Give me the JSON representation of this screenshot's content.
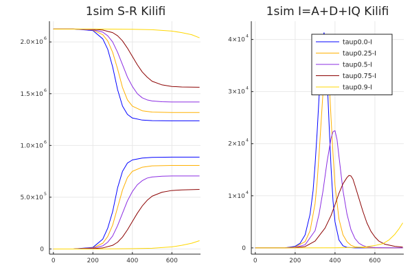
{
  "chart_data": [
    {
      "type": "line",
      "title": "1sim S-R Kilifi",
      "xlim": [
        -20,
        745
      ],
      "ylim": [
        -50000,
        2200000
      ],
      "xticks": [
        0,
        200,
        400,
        600
      ],
      "yticks": [
        {
          "value": 0,
          "mant": "0",
          "exp": ""
        },
        {
          "value": 500000,
          "mant": "5.0×10",
          "exp": "5"
        },
        {
          "value": 1000000,
          "mant": "1.0×10",
          "exp": "6"
        },
        {
          "value": 1500000,
          "mant": "1.5×10",
          "exp": "6"
        },
        {
          "value": 2000000,
          "mant": "2.0×10",
          "exp": "6"
        }
      ],
      "grid": true,
      "legend": "none",
      "series": [
        {
          "color": "#0000ff",
          "x": [
            0,
            100,
            200,
            250,
            275,
            300,
            325,
            350,
            375,
            400,
            450,
            500,
            600,
            740
          ],
          "y": [
            2125000,
            2125000,
            2110000,
            2030000,
            1930000,
            1760000,
            1540000,
            1380000,
            1300000,
            1265000,
            1245000,
            1240000,
            1238000,
            1238000
          ]
        },
        {
          "color": "#ffb000",
          "x": [
            0,
            100,
            200,
            250,
            275,
            300,
            325,
            350,
            375,
            400,
            450,
            500,
            600,
            740
          ],
          "y": [
            2125000,
            2125000,
            2115000,
            2070000,
            2010000,
            1900000,
            1740000,
            1560000,
            1440000,
            1380000,
            1335000,
            1322000,
            1318000,
            1318000
          ]
        },
        {
          "color": "#8a2be2",
          "x": [
            0,
            100,
            200,
            250,
            275,
            300,
            325,
            350,
            375,
            400,
            425,
            450,
            475,
            500,
            550,
            600,
            740
          ],
          "y": [
            2125000,
            2125000,
            2118000,
            2095000,
            2060000,
            2000000,
            1900000,
            1780000,
            1660000,
            1570000,
            1500000,
            1460000,
            1440000,
            1430000,
            1422000,
            1420000,
            1420000
          ]
        },
        {
          "color": "#8b0000",
          "x": [
            0,
            100,
            200,
            250,
            300,
            325,
            350,
            375,
            400,
            425,
            450,
            475,
            500,
            550,
            600,
            650,
            740
          ],
          "y": [
            2125000,
            2125000,
            2122000,
            2115000,
            2090000,
            2060000,
            2010000,
            1940000,
            1860000,
            1780000,
            1710000,
            1660000,
            1620000,
            1585000,
            1570000,
            1565000,
            1562000
          ]
        },
        {
          "color": "#ffd700",
          "x": [
            0,
            100,
            200,
            300,
            400,
            500,
            600,
            650,
            700,
            740
          ],
          "y": [
            2125000,
            2125000,
            2125000,
            2124000,
            2122000,
            2118000,
            2105000,
            2090000,
            2070000,
            2040000
          ]
        },
        {
          "color": "#0000ff",
          "x": [
            0,
            100,
            200,
            250,
            275,
            300,
            325,
            350,
            375,
            400,
            450,
            500,
            600,
            740
          ],
          "y": [
            0,
            0,
            15000,
            95000,
            200000,
            360000,
            590000,
            750000,
            830000,
            860000,
            878000,
            885000,
            887000,
            887000
          ]
        },
        {
          "color": "#ffb000",
          "x": [
            0,
            100,
            200,
            250,
            275,
            300,
            325,
            350,
            375,
            400,
            450,
            500,
            600,
            740
          ],
          "y": [
            0,
            0,
            10000,
            55000,
            120000,
            230000,
            400000,
            570000,
            690000,
            750000,
            790000,
            803000,
            807000,
            807000
          ]
        },
        {
          "color": "#8a2be2",
          "x": [
            0,
            100,
            200,
            250,
            275,
            300,
            325,
            350,
            375,
            400,
            425,
            450,
            475,
            500,
            550,
            600,
            740
          ],
          "y": [
            0,
            0,
            7000,
            30000,
            65000,
            125000,
            225000,
            345000,
            465000,
            555000,
            620000,
            660000,
            685000,
            695000,
            703000,
            705000,
            705000
          ]
        },
        {
          "color": "#8b0000",
          "x": [
            0,
            100,
            200,
            250,
            300,
            325,
            350,
            375,
            400,
            425,
            450,
            475,
            500,
            550,
            600,
            650,
            740
          ],
          "y": [
            0,
            0,
            3000,
            10000,
            35000,
            65000,
            115000,
            185000,
            265000,
            345000,
            415000,
            470000,
            510000,
            548000,
            565000,
            570000,
            575000
          ]
        },
        {
          "color": "#ffd700",
          "x": [
            0,
            100,
            200,
            300,
            400,
            500,
            600,
            650,
            700,
            740
          ],
          "y": [
            0,
            0,
            0,
            1000,
            3000,
            7000,
            20000,
            35000,
            55000,
            80000
          ]
        }
      ]
    },
    {
      "type": "line",
      "title": "1sim I=A+D+IQ Kilifi",
      "xlim": [
        -20,
        745
      ],
      "ylim": [
        -1200,
        43500
      ],
      "xticks": [
        0,
        200,
        400,
        600
      ],
      "yticks": [
        {
          "value": 0,
          "mant": "0",
          "exp": ""
        },
        {
          "value": 10000,
          "mant": "1×10",
          "exp": "4"
        },
        {
          "value": 20000,
          "mant": "2×10",
          "exp": "4"
        },
        {
          "value": 30000,
          "mant": "3×10",
          "exp": "4"
        },
        {
          "value": 40000,
          "mant": "4×10",
          "exp": "4"
        }
      ],
      "grid": true,
      "legend": "top-right",
      "series": [
        {
          "name": "taup0.0-I",
          "color": "#0000ff",
          "x": [
            0,
            150,
            200,
            225,
            250,
            275,
            290,
            300,
            310,
            320,
            330,
            340,
            345,
            350,
            360,
            370,
            380,
            390,
            400,
            420,
            440,
            460,
            500,
            600,
            740
          ],
          "y": [
            0,
            20,
            300,
            900,
            2500,
            6500,
            11000,
            16000,
            22000,
            29000,
            36000,
            40500,
            41300,
            40000,
            33000,
            24000,
            15500,
            9000,
            5000,
            1500,
            400,
            100,
            0,
            0,
            0
          ]
        },
        {
          "name": "taup0.25-I",
          "color": "#ffb000",
          "x": [
            0,
            150,
            200,
            250,
            275,
            300,
            310,
            320,
            330,
            340,
            350,
            360,
            370,
            380,
            390,
            400,
            420,
            440,
            460,
            480,
            500,
            550,
            600,
            740
          ],
          "y": [
            0,
            20,
            150,
            1200,
            3300,
            8500,
            12500,
            18000,
            24000,
            30000,
            34500,
            35500,
            32500,
            25000,
            18000,
            12000,
            5500,
            2500,
            1200,
            500,
            200,
            30,
            0,
            0
          ]
        },
        {
          "name": "taup0.5-I",
          "color": "#8a2be2",
          "x": [
            0,
            150,
            200,
            250,
            300,
            320,
            340,
            360,
            380,
            390,
            400,
            410,
            420,
            440,
            460,
            480,
            500,
            520,
            540,
            560,
            600,
            650,
            740
          ],
          "y": [
            0,
            10,
            80,
            600,
            3300,
            6500,
            11000,
            16500,
            21000,
            22300,
            22500,
            20800,
            17500,
            11000,
            6500,
            3500,
            1800,
            900,
            450,
            200,
            50,
            10,
            0
          ]
        },
        {
          "name": "taup0.75-I",
          "color": "#8b0000",
          "x": [
            0,
            150,
            200,
            250,
            300,
            350,
            380,
            400,
            420,
            440,
            460,
            470,
            480,
            490,
            500,
            520,
            540,
            560,
            580,
            600,
            620,
            650,
            700,
            740
          ],
          "y": [
            0,
            5,
            30,
            250,
            1300,
            3800,
            6200,
            8300,
            10500,
            12300,
            13500,
            13900,
            13800,
            13200,
            12000,
            9500,
            7000,
            4800,
            3200,
            2100,
            1300,
            700,
            300,
            150
          ]
        },
        {
          "name": "taup0.9-I",
          "color": "#ffd700",
          "x": [
            0,
            200,
            400,
            500,
            550,
            600,
            640,
            670,
            700,
            720,
            740
          ],
          "y": [
            0,
            0,
            10,
            80,
            200,
            450,
            800,
            1500,
            2600,
            3600,
            4800
          ]
        }
      ]
    }
  ]
}
